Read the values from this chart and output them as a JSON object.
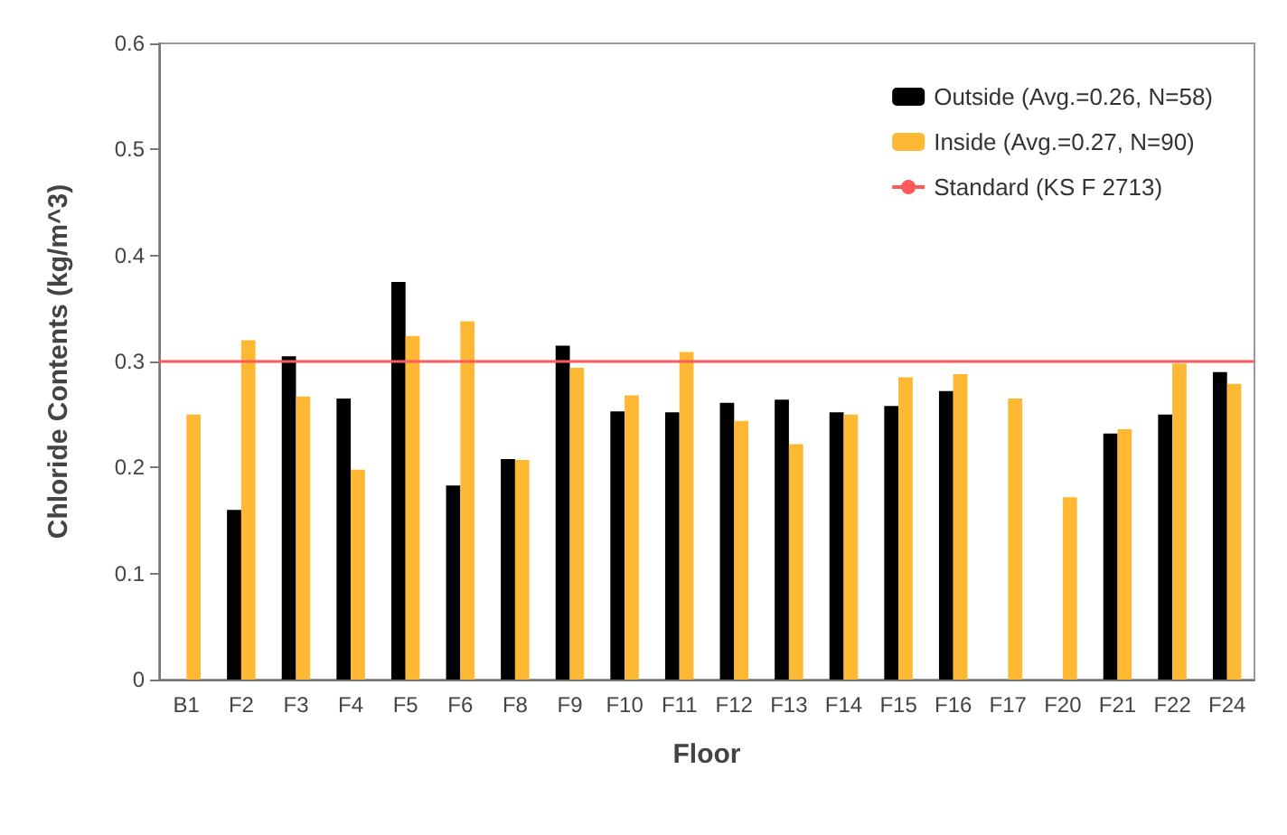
{
  "chart_data": {
    "type": "bar",
    "xlabel": "Floor",
    "ylabel": "Chloride Contents (kg/m^3)",
    "categories": [
      "B1",
      "F2",
      "F3",
      "F4",
      "F5",
      "F6",
      "F8",
      "F9",
      "F10",
      "F11",
      "F12",
      "F13",
      "F14",
      "F15",
      "F16",
      "F17",
      "F20",
      "F21",
      "F22",
      "F24"
    ],
    "series": [
      {
        "name": "Outside (Avg.=0.26, N=58)",
        "color": "#000000",
        "values": [
          null,
          0.16,
          0.305,
          0.265,
          0.375,
          0.183,
          0.208,
          0.315,
          0.253,
          0.252,
          0.261,
          0.264,
          0.252,
          0.258,
          0.272,
          null,
          null,
          0.232,
          0.25,
          0.29
        ]
      },
      {
        "name": "Inside (Avg.=0.27, N=90)",
        "color": "#ffb833",
        "values": [
          0.25,
          0.32,
          0.267,
          0.198,
          0.324,
          0.338,
          0.207,
          0.294,
          0.268,
          0.309,
          0.244,
          0.222,
          0.25,
          0.285,
          0.288,
          0.265,
          0.172,
          0.236,
          0.298,
          0.279
        ]
      }
    ],
    "ref_lines": [
      {
        "axis": "y",
        "value": 0.3,
        "label": "Standard (KS F 2713)",
        "color": "#ff5a5a"
      }
    ],
    "ylim": [
      0,
      0.6
    ],
    "yticks": [
      0,
      0.1,
      0.2,
      0.3,
      0.4,
      0.5,
      0.6
    ],
    "grid": false,
    "legend": "top right"
  }
}
